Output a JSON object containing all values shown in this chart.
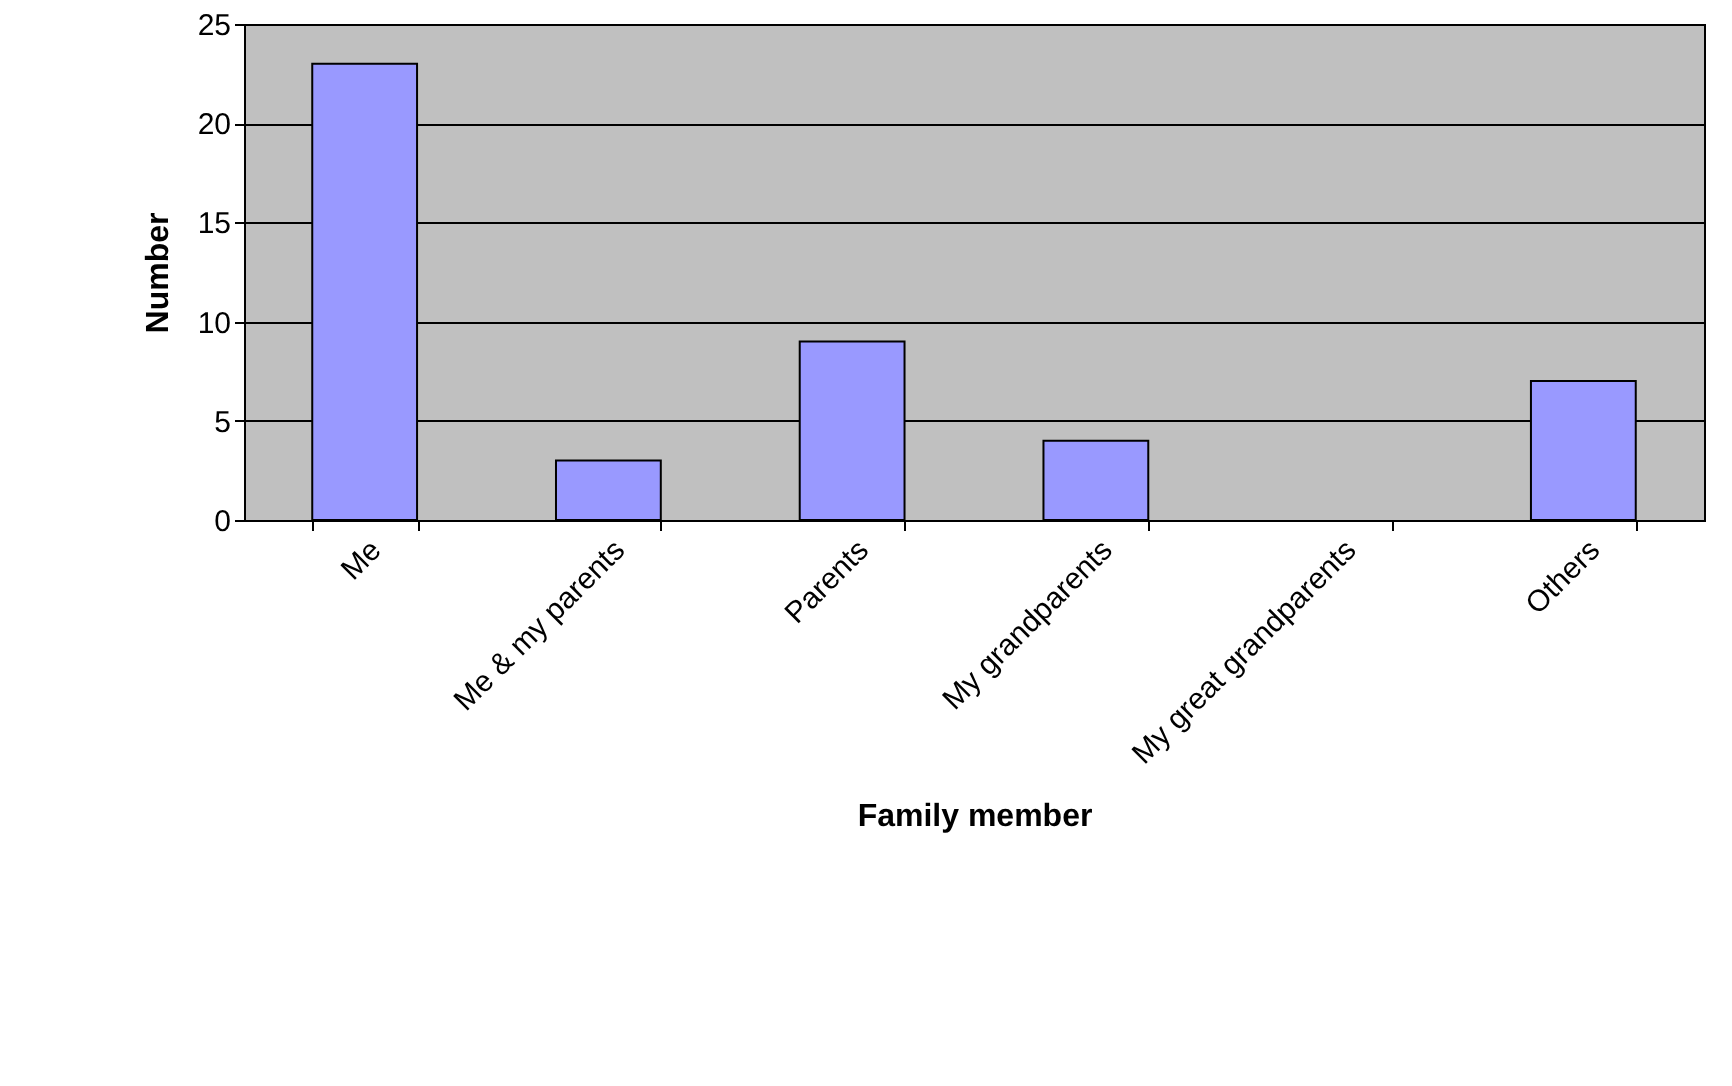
{
  "chart_data": {
    "type": "bar",
    "xlabel": "Family member",
    "ylabel": "Number",
    "categories": [
      "Me",
      "Me & my parents",
      "Parents",
      "My grandparents",
      "My great grandparents",
      "Others"
    ],
    "values": [
      23,
      3,
      9,
      4,
      0,
      7
    ],
    "color": "#9999ff",
    "ylim": [
      0,
      25
    ],
    "yticks": [
      0,
      5,
      10,
      15,
      20,
      25
    ],
    "grid": "y"
  }
}
